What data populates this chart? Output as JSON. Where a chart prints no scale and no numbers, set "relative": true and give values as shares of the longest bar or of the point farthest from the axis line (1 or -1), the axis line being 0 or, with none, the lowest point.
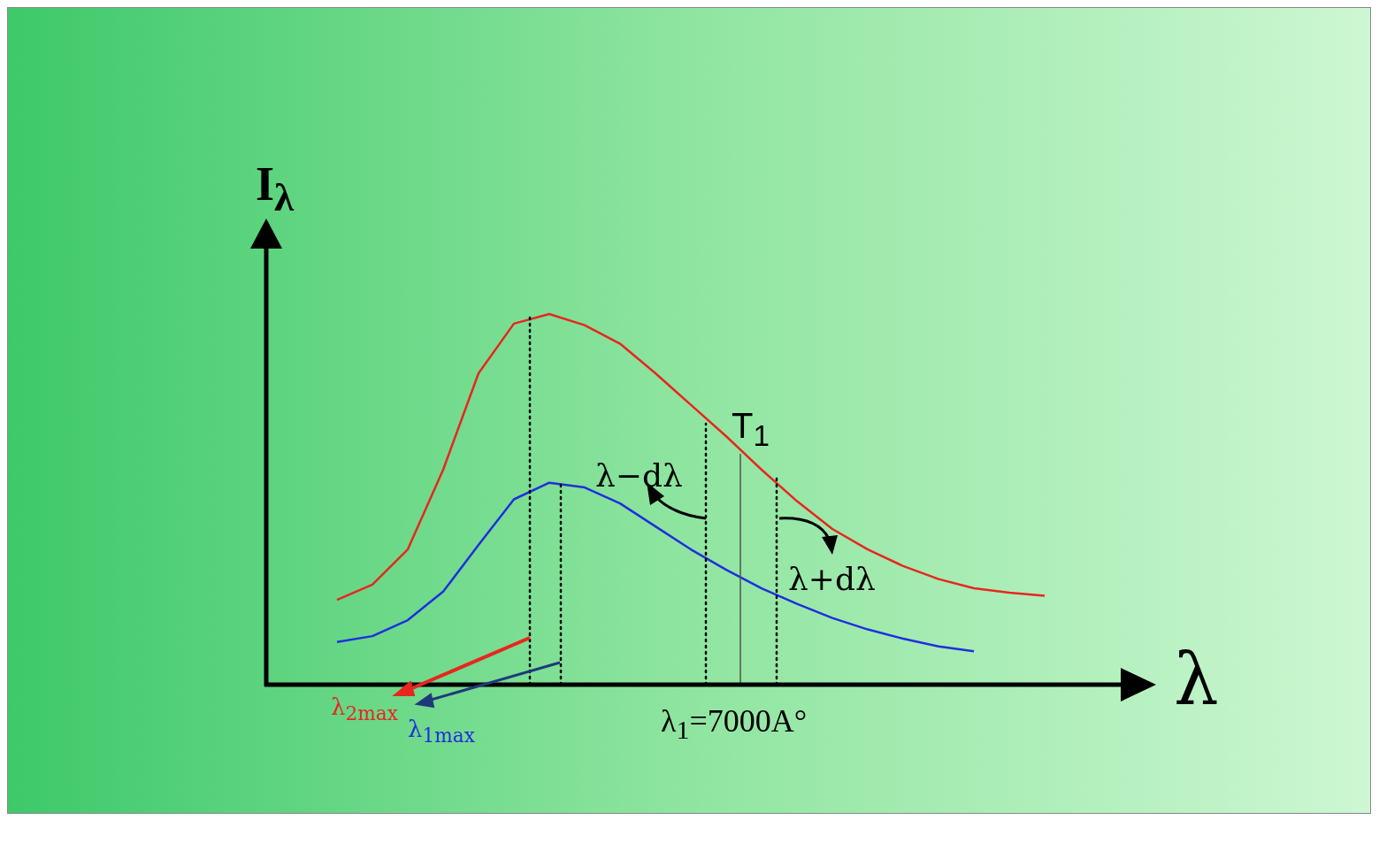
{
  "chart_data": {
    "type": "line",
    "relative": true,
    "xlabel": "λ",
    "ylabel": "I$_{λ}$",
    "tick_labels": false,
    "legend": false,
    "marker": "none",
    "line_style": "solid",
    "categories": [
      null,
      null,
      null,
      null,
      null,
      null,
      null,
      null,
      null,
      null,
      null,
      null,
      null,
      null,
      null,
      null,
      null,
      null,
      null,
      null,
      null
    ],
    "series": [
      {
        "color": "#e8261f",
        "values": [
          0.229,
          0.27,
          0.365,
          0.58,
          0.84,
          0.974,
          1,
          0.97,
          0.92,
          0.84,
          0.755,
          0.67,
          0.58,
          0.495,
          0.42,
          0.365,
          0.32,
          0.285,
          0.26,
          0.248,
          0.24
        ]
      },
      {
        "color": "#1f2fe0",
        "values": [
          0.115,
          0.131,
          0.174,
          0.251,
          0.377,
          0.5,
          0.545,
          0.532,
          0.489,
          0.427,
          0.365,
          0.31,
          0.26,
          0.218,
          0.18,
          0.149,
          0.124,
          0.103,
          0.09,
          null,
          null
        ]
      }
    ],
    "annotations": [
      "T$_{1}$",
      "λ−dλ",
      "λ+dλ",
      "λ$_{2max}$",
      "λ$_{1max}$",
      "λ$_{1}$=7000A°"
    ]
  }
}
